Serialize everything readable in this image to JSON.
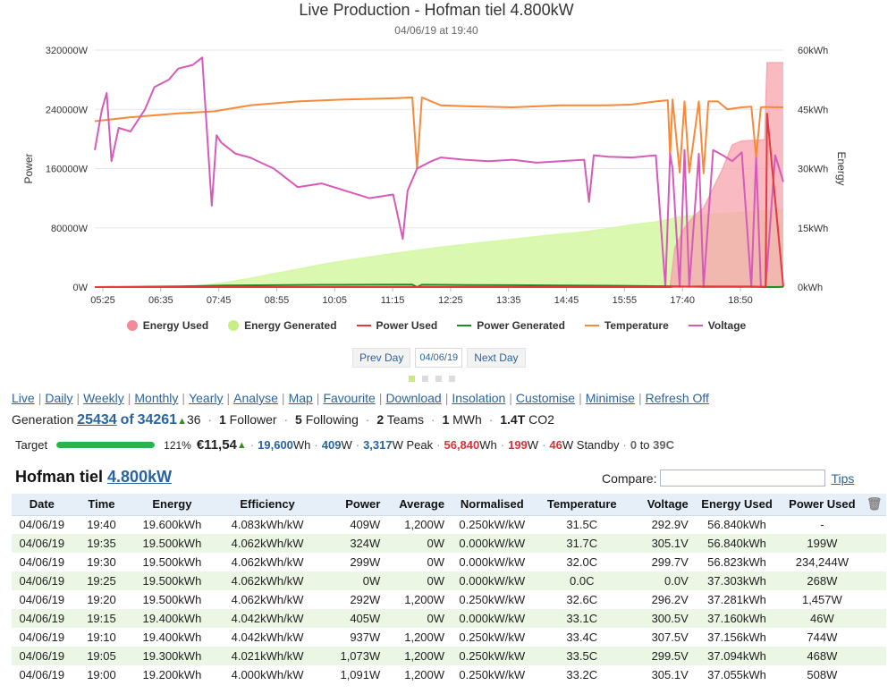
{
  "chart": {
    "title": "Live Production - Hofman tiel 4.800kW",
    "subtitle": "04/06/19 at 19:40",
    "ylabel_left": "Power",
    "ylabel_right": "Energy",
    "colors": {
      "energy_used": "#f7a3ad",
      "energy_generated": "#d4f7a2",
      "power_used": "#e5383f",
      "power_generated": "#1d8a22",
      "temperature": "#f7893a",
      "voltage": "#d65bb8"
    }
  },
  "legend": [
    {
      "label": "Energy Used",
      "color": "#f48a99",
      "kind": "dot"
    },
    {
      "label": "Energy Generated",
      "color": "#c6ef86",
      "kind": "dot"
    },
    {
      "label": "Power Used",
      "color": "#e5383f",
      "kind": "line"
    },
    {
      "label": "Power Generated",
      "color": "#1d8a22",
      "kind": "line"
    },
    {
      "label": "Temperature",
      "color": "#f7893a",
      "kind": "line"
    },
    {
      "label": "Voltage",
      "color": "#d65bb8",
      "kind": "line"
    }
  ],
  "chart_data": {
    "type": "line",
    "title": "Live Production - Hofman tiel 4.800kW",
    "subtitle": "04/06/19 at 19:40",
    "xlabel": "",
    "ylabel": "Power",
    "y2label": "Energy",
    "x_ticks": [
      "05:25",
      "06:35",
      "07:45",
      "08:55",
      "10:05",
      "11:15",
      "12:25",
      "13:35",
      "14:45",
      "15:55",
      "17:40",
      "18:50"
    ],
    "y_ticks": [
      "0W",
      "80000W",
      "160000W",
      "240000W",
      "320000W"
    ],
    "y2_ticks": [
      "0kWh",
      "15kWh",
      "30kWh",
      "45kWh",
      "60kWh"
    ],
    "ylim": [
      0,
      320000
    ],
    "y2lim": [
      0,
      60
    ],
    "x_range_hours": [
      5.25,
      19.67
    ],
    "grid": true,
    "legend_position": "bottom",
    "series": [
      {
        "name": "Energy Generated",
        "type": "area",
        "axis": "right",
        "x": [
          5.25,
          7.0,
          7.5,
          8.0,
          8.5,
          9.0,
          9.5,
          10.0,
          10.5,
          11.0,
          11.5,
          12.0,
          12.5,
          13.0,
          13.5,
          14.0,
          14.5,
          15.0,
          15.5,
          16.0,
          16.5,
          17.0,
          17.25,
          17.5,
          18.0,
          18.5,
          19.0,
          19.5,
          19.67
        ],
        "y": [
          0,
          0.1,
          0.4,
          1.2,
          2.2,
          3.4,
          4.5,
          5.7,
          6.7,
          7.6,
          8.5,
          9.3,
          10.1,
          10.8,
          11.5,
          12.1,
          12.8,
          13.4,
          14.0,
          14.8,
          15.8,
          16.5,
          17.1,
          17.8,
          18.3,
          18.7,
          19.1,
          19.5,
          19.6
        ]
      },
      {
        "name": "Energy Used",
        "type": "area",
        "axis": "right",
        "x": [
          5.25,
          17.3,
          17.4,
          17.6,
          17.8,
          18.0,
          18.2,
          18.4,
          18.6,
          18.8,
          19.0,
          19.2,
          19.25,
          19.28,
          19.33,
          19.4,
          19.5,
          19.6,
          19.67
        ],
        "y": [
          0,
          0,
          10,
          15,
          18,
          20,
          25,
          30,
          36,
          37,
          37.1,
          37.2,
          37.3,
          37.3,
          56.8,
          56.8,
          56.8,
          56.8,
          56.8
        ]
      },
      {
        "name": "Temperature",
        "type": "line",
        "axis": "right",
        "x": [
          5.25,
          6.0,
          7.0,
          7.75,
          8.5,
          9.5,
          10.5,
          11.5,
          11.9,
          12.0,
          12.1,
          12.5,
          13.0,
          14.0,
          15.0,
          16.0,
          16.5,
          17.0,
          17.25,
          17.3,
          17.35,
          17.5,
          17.6,
          17.7,
          17.9,
          18.0,
          18.1,
          18.3,
          18.5,
          18.8,
          19.0,
          19.1,
          19.2,
          19.3,
          19.5,
          19.67
        ],
        "y": [
          42,
          43,
          44,
          44.5,
          46,
          47,
          47.5,
          47.8,
          48,
          30,
          48,
          46,
          45.8,
          45.5,
          46,
          46,
          46.2,
          47,
          47.3,
          33,
          47.5,
          29,
          47,
          29,
          47,
          28.8,
          47,
          47,
          45,
          45.5,
          45.7,
          33,
          45.5,
          45.6,
          45.5,
          45.5
        ]
      },
      {
        "name": "Voltage",
        "type": "line",
        "axis": "left",
        "x": [
          5.25,
          5.4,
          5.5,
          5.6,
          5.75,
          6.0,
          6.3,
          6.5,
          6.8,
          7.0,
          7.3,
          7.5,
          7.7,
          7.8,
          7.9,
          8.2,
          8.5,
          9.0,
          9.5,
          10.0,
          10.5,
          11.0,
          11.5,
          11.7,
          11.8,
          12.0,
          12.3,
          12.5,
          13.0,
          13.5,
          14.0,
          14.5,
          15.0,
          15.5,
          15.6,
          15.7,
          16.0,
          16.5,
          17.0,
          17.2,
          17.3,
          17.35,
          17.5,
          17.6,
          17.7,
          17.9,
          18.0,
          18.2,
          18.4,
          18.6,
          18.8,
          19.0,
          19.1,
          19.2,
          19.3,
          19.5,
          19.67
        ],
        "y": [
          185000,
          240000,
          262000,
          170000,
          215000,
          210000,
          240000,
          270000,
          280000,
          295000,
          300000,
          310000,
          110000,
          205000,
          195000,
          180000,
          175000,
          160000,
          135000,
          140000,
          130000,
          120000,
          125000,
          65000,
          130000,
          160000,
          170000,
          175000,
          172000,
          170000,
          172000,
          168000,
          170000,
          172000,
          115000,
          178000,
          176000,
          175000,
          178000,
          0,
          180000,
          160000,
          0,
          185000,
          0,
          180000,
          0,
          185000,
          178000,
          170000,
          182000,
          0,
          175000,
          0,
          0,
          178000,
          142000
        ]
      },
      {
        "name": "Power Generated",
        "type": "line",
        "axis": "left",
        "x": [
          5.25,
          7.0,
          8.0,
          9.0,
          10.0,
          11.0,
          11.9,
          12.0,
          12.1,
          13.0,
          14.0,
          15.0,
          16.0,
          17.0,
          17.5,
          18.0,
          18.5,
          19.0,
          19.5,
          19.67
        ],
        "y": [
          0,
          1000,
          2000,
          2500,
          3000,
          3200,
          3300,
          0,
          3100,
          2800,
          2500,
          2200,
          1800,
          1200,
          800,
          400,
          300,
          200,
          0,
          409
        ]
      },
      {
        "name": "Power Used",
        "type": "line",
        "axis": "left",
        "x": [
          5.25,
          17.3,
          17.35,
          18.0,
          19.0,
          19.3,
          19.33,
          19.67
        ],
        "y": [
          0,
          0,
          500,
          800,
          700,
          468,
          234244,
          199
        ]
      }
    ]
  },
  "day_nav": {
    "prev": "Prev Day",
    "date": "04/06/19",
    "next": "Next Day"
  },
  "nav_links": [
    "Live",
    "Daily",
    "Weekly",
    "Monthly",
    "Yearly",
    "Analyse",
    "Map",
    "Favourite",
    "Download",
    "Insolation",
    "Customise",
    "Minimise",
    "Refresh Off"
  ],
  "stats": {
    "generation_label": "Generation",
    "rank": "25434",
    "of_label": "of",
    "total": "34261",
    "rank_change": "36",
    "followers_count": "1",
    "followers_label": "Follower",
    "following_count": "5",
    "following_label": "Following",
    "teams_count": "2",
    "teams_label": "Teams",
    "mwh_count": "1",
    "mwh_label": "MWh",
    "co2_count": "1.4T",
    "co2_label": "CO2"
  },
  "target": {
    "label": "Target",
    "percent_value": 121,
    "percent": "121%",
    "money": "€11,54",
    "energy": "19,600",
    "energy_unit": "Wh",
    "power": "409",
    "power_unit": "W",
    "peak": "3,317",
    "peak_unit": "W Peak",
    "used_energy": "56,840",
    "used_energy_unit": "Wh",
    "used_power": "199",
    "used_power_unit": "W",
    "standby": "46",
    "standby_unit": "W Standby",
    "temp_min": "0",
    "temp_to": "to",
    "temp_max": "39C"
  },
  "system": {
    "name": "Hofman tiel",
    "size": "4.800kW"
  },
  "compare": {
    "label": "Compare:",
    "value": "",
    "tips": "Tips"
  },
  "table": {
    "headers": [
      "Date",
      "Time",
      "Energy",
      "Efficiency",
      "Power",
      "Average",
      "Normalised",
      "Temperature",
      "Voltage",
      "Energy Used",
      "Power Used"
    ],
    "rows": [
      [
        "04/06/19",
        "19:40",
        "19.600kWh",
        "4.083kWh/kW",
        "409W",
        "1,200W",
        "0.250kW/kW",
        "31.5C",
        "292.9V",
        "56.840kWh",
        "-"
      ],
      [
        "04/06/19",
        "19:35",
        "19.500kWh",
        "4.062kWh/kW",
        "324W",
        "0W",
        "0.000kW/kW",
        "31.7C",
        "305.1V",
        "56.840kWh",
        "199W"
      ],
      [
        "04/06/19",
        "19:30",
        "19.500kWh",
        "4.062kWh/kW",
        "299W",
        "0W",
        "0.000kW/kW",
        "32.0C",
        "299.7V",
        "56.823kWh",
        "234,244W"
      ],
      [
        "04/06/19",
        "19:25",
        "19.500kWh",
        "4.062kWh/kW",
        "0W",
        "0W",
        "0.000kW/kW",
        "0.0C",
        "0.0V",
        "37.303kWh",
        "268W"
      ],
      [
        "04/06/19",
        "19:20",
        "19.500kWh",
        "4.062kWh/kW",
        "292W",
        "1,200W",
        "0.250kW/kW",
        "32.6C",
        "296.2V",
        "37.281kWh",
        "1,457W"
      ],
      [
        "04/06/19",
        "19:15",
        "19.400kWh",
        "4.042kWh/kW",
        "405W",
        "0W",
        "0.000kW/kW",
        "33.1C",
        "300.5V",
        "37.160kWh",
        "46W"
      ],
      [
        "04/06/19",
        "19:10",
        "19.400kWh",
        "4.042kWh/kW",
        "937W",
        "1,200W",
        "0.250kW/kW",
        "33.4C",
        "307.5V",
        "37.156kWh",
        "744W"
      ],
      [
        "04/06/19",
        "19:05",
        "19.300kWh",
        "4.021kWh/kW",
        "1,073W",
        "1,200W",
        "0.250kW/kW",
        "33.5C",
        "299.5V",
        "37.094kWh",
        "468W"
      ],
      [
        "04/06/19",
        "19:00",
        "19.200kWh",
        "4.000kWh/kW",
        "1,091W",
        "1,200W",
        "0.250kW/kW",
        "33.2C",
        "305.1V",
        "37.055kWh",
        "508W"
      ]
    ]
  }
}
